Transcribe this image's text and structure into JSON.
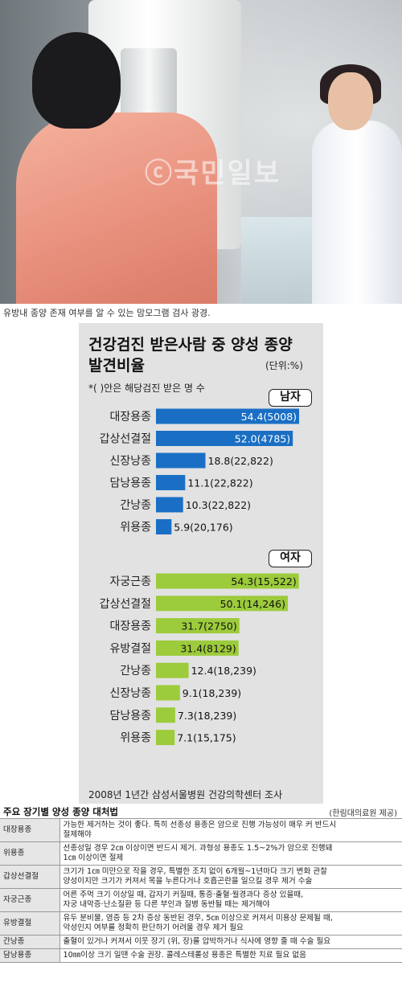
{
  "photo": {
    "watermark": "ⓒ국민일보",
    "caption": "유방내 종양 존재 여부를 알 수 있는 맘모그램 검사 광경."
  },
  "chart": {
    "title_line1": "건강검진 받은사람 중 양성 종양",
    "title_line2": "발견비율",
    "unit": "(단위:%)",
    "note": "*( )안은 해당검진 받은 명 수",
    "source": "2008년 1년간 삼성서울병원 건강의학센터 조사"
  },
  "chart_data": {
    "type": "bar",
    "orientation": "horizontal",
    "title": "건강검진 받은사람 중 양성 종양 발견비율",
    "unit": "%",
    "xlim": [
      0,
      55
    ],
    "groups": [
      {
        "name": "남자",
        "color": "#1a6fc4",
        "categories": [
          "대장용종",
          "갑상선결절",
          "신장낭종",
          "담낭용종",
          "간낭종",
          "위용종"
        ],
        "values": [
          54.4,
          52.0,
          18.8,
          11.1,
          10.3,
          5.9
        ],
        "labels": [
          "54.4(5008)",
          "52.0(4785)",
          "18.8(22,822)",
          "11.1(22,822)",
          "10.3(22,822)",
          "5.9(20,176)"
        ]
      },
      {
        "name": "여자",
        "color": "#9ccb3b",
        "categories": [
          "자궁근종",
          "갑상선결절",
          "대장용종",
          "유방결절",
          "간낭종",
          "신장낭종",
          "담낭용종",
          "위용종"
        ],
        "values": [
          54.3,
          50.1,
          31.7,
          31.4,
          12.4,
          9.1,
          7.3,
          7.1
        ],
        "labels": [
          "54.3(15,522)",
          "50.1(14,246)",
          "31.7(2750)",
          "31.4(8129)",
          "12.4(18,239)",
          "9.1(18,239)",
          "7.3(18,239)",
          "7.1(15,175)"
        ]
      }
    ]
  },
  "table": {
    "title": "주요 장기별 양성 종양 대처법",
    "credit": "(한림대의료원 제공)",
    "rows": [
      {
        "name": "대장용종",
        "desc1": "가능한 제거하는 것이 좋다. 특히 선종성 용종은 암으로 진행 가능성이 매우 커 반드시",
        "desc2": "절제해야"
      },
      {
        "name": "위용종",
        "desc1": "선종성일 경우 2㎝ 이상이면 반드시 제거. 과형성 용종도 1.5~2%가 암으로 진행돼",
        "desc2": "1㎝ 이상이면 절제"
      },
      {
        "name": "갑상선결절",
        "desc1": "크기가 1㎝ 미만으로 작을 경우, 특별한 조치 없이 6개월~1년마다 크기 변화 관찰",
        "desc2": "양성이지만 크기가 커져서 목을 누른다거나 호흡곤란을 일으킬 경우 제거 수술"
      },
      {
        "name": "자궁근종",
        "desc1": "어른 주먹 크기 이상일 때, 갑자기 커질때, 통증·출혈·월경과다 증상 있을때,",
        "desc2": "자궁 내막증·난소질환 등 다른 부인과 질병 동반될 때는 제거해야"
      },
      {
        "name": "유방결절",
        "desc1": "유두 분비물, 염증 등 2차 증상 동반된 경우, 5㎝ 이상으로 커져서 미용상 문제될 때,",
        "desc2": "악성인지 여부를 정확히 판단하기 어려울 경우 제거 필요"
      },
      {
        "name": "간낭종",
        "desc1": "출혈이 있거나 커져서 이웃 장기 (위, 장)를 압박하거나 식사에 영향 줄 때 수술 필요",
        "desc2": ""
      },
      {
        "name": "담낭용종",
        "desc1": "10㎜이상 크기 일땐 수술 권장. 콜레스테롤성 용종은 특별한 치료 필요 없음",
        "desc2": ""
      }
    ]
  }
}
